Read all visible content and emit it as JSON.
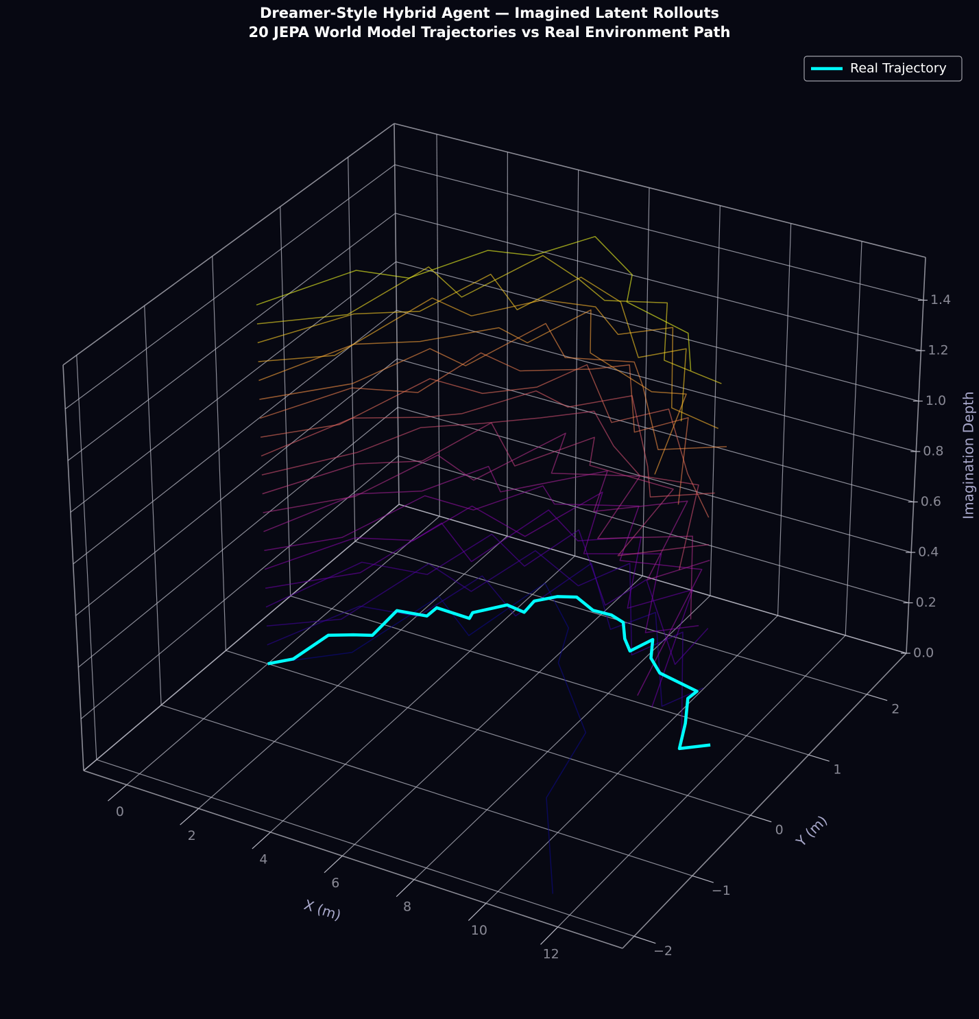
{
  "chart_data": {
    "type": "line3d",
    "title": "Dreamer-Style Hybrid Agent — Imagined Latent Rollouts",
    "subtitle": "20 JEPA World Model Trajectories vs Real Environment Path",
    "xlabel": "X (m)",
    "ylabel": "Y (m)",
    "zlabel": "Imagination Depth",
    "xlim": [
      -1.2,
      13.8
    ],
    "ylim": [
      -2.2,
      2.68
    ],
    "zlim": [
      0,
      1.57
    ],
    "xticks": [
      0,
      2,
      4,
      6,
      8,
      10,
      12
    ],
    "yticks": [
      {
        "value": -2,
        "label": "−2"
      },
      {
        "value": -1,
        "label": "−1"
      },
      0,
      1,
      2
    ],
    "zticks": [
      {
        "value": 0,
        "label": "0.0"
      },
      0.2,
      0.4,
      0.6,
      0.8,
      {
        "value": 1,
        "label": "1.0"
      },
      1.2,
      1.4
    ],
    "grid": true,
    "legend": "upper right",
    "series": [
      {
        "name": "Real Trajectory",
        "color": "#00ffff",
        "z": 0,
        "x": [
          0,
          0.42,
          0.58,
          1.1,
          1.52,
          1.44,
          2.22,
          2.23,
          3.2,
          3.13,
          3.7,
          4.25,
          4.2,
          4.6,
          5.04,
          5.72,
          6.24,
          6.68,
          7.1,
          7.5,
          7.74,
          8.13,
          8.67,
          9.91,
          9.87,
          10.37,
          10.8,
          11.4
        ],
        "y": [
          0,
          0.17,
          0.63,
          0.74,
          0.81,
          1.24,
          1.29,
          1.44,
          1.43,
          1.52,
          1.76,
          1.73,
          1.92,
          2.07,
          2.14,
          2.03,
          2.04,
          1.99,
          1.78,
          1.64,
          1.88,
          1.63,
          1.47,
          1.38,
          1.25,
          0.92,
          0.57,
          0.74
        ]
      }
    ],
    "rollouts": [
      {
        "color": "#0d0887",
        "z": 0,
        "x": [
          0,
          1.5,
          2.0,
          3.6,
          4.0,
          5.6,
          6.2,
          8.4,
          9.0,
          11.2
        ],
        "y": [
          0,
          0.5,
          1.6,
          1.2,
          2.2,
          1.7,
          1.2,
          0.4,
          -0.6,
          -1.8
        ]
      },
      {
        "color": "#2c0594",
        "z": 0.075,
        "x": [
          0,
          1.0,
          2.5,
          2.9,
          4.6,
          5.0,
          7.0,
          7.6,
          9.9,
          10.4
        ],
        "y": [
          0,
          0.9,
          1.0,
          1.8,
          1.4,
          2.4,
          1.6,
          2.0,
          0.8,
          1.2
        ]
      },
      {
        "color": "#43039e",
        "z": 0.15,
        "x": [
          0,
          1.4,
          1.9,
          3.5,
          3.9,
          5.7,
          6.3,
          8.5,
          9.1,
          11.5
        ],
        "y": [
          0,
          0.4,
          1.5,
          1.3,
          2.1,
          1.8,
          2.3,
          1.1,
          1.6,
          0.2
        ]
      },
      {
        "color": "#5901a5",
        "z": 0.225,
        "x": [
          0,
          0.9,
          2.6,
          3.0,
          4.5,
          4.8,
          7.2,
          7.5,
          10.1,
          10.0
        ],
        "y": [
          0,
          1.0,
          1.1,
          1.9,
          1.6,
          2.3,
          1.4,
          1.9,
          0.9,
          1.5
        ]
      },
      {
        "color": "#6e00a8",
        "z": 0.3,
        "x": [
          0,
          1.6,
          2.1,
          3.7,
          4.1,
          5.5,
          6.8,
          8.2,
          9.2,
          11.0
        ],
        "y": [
          0,
          0.6,
          1.6,
          1.2,
          2.2,
          1.9,
          2.2,
          1.2,
          1.7,
          0.0
        ]
      },
      {
        "color": "#8305a7",
        "z": 0.375,
        "x": [
          0,
          1.1,
          2.4,
          2.8,
          4.7,
          5.3,
          6.4,
          8.1,
          9.6,
          10.6
        ],
        "y": [
          0,
          0.8,
          1.0,
          1.7,
          1.5,
          2.4,
          1.5,
          1.8,
          0.7,
          1.0
        ]
      },
      {
        "color": "#9511a1",
        "z": 0.45,
        "x": [
          0,
          1.3,
          2.0,
          3.4,
          4.3,
          5.0,
          6.9,
          7.8,
          9.8,
          11.3
        ],
        "y": [
          0,
          0.5,
          1.4,
          1.4,
          2.0,
          1.8,
          2.1,
          1.3,
          1.5,
          -0.4
        ]
      },
      {
        "color": "#a72197",
        "z": 0.525,
        "x": [
          0,
          1.0,
          2.3,
          3.1,
          4.0,
          5.8,
          6.5,
          8.3,
          9.3,
          10.2
        ],
        "y": [
          0,
          0.9,
          1.2,
          1.8,
          1.5,
          2.2,
          1.6,
          2.1,
          0.9,
          1.4
        ]
      },
      {
        "color": "#b6308b",
        "z": 0.6,
        "x": [
          0,
          1.5,
          2.2,
          3.6,
          4.4,
          5.1,
          7.1,
          7.7,
          9.7,
          11.6
        ],
        "y": [
          0,
          0.6,
          1.5,
          1.3,
          2.3,
          1.7,
          2.0,
          1.0,
          1.4,
          0.3
        ]
      },
      {
        "color": "#c5407e",
        "z": 0.675,
        "x": [
          0,
          1.2,
          2.5,
          3.0,
          4.6,
          5.6,
          6.2,
          8.6,
          9.0,
          10.7
        ],
        "y": [
          0,
          0.8,
          1.1,
          1.9,
          1.4,
          2.1,
          1.7,
          1.7,
          0.6,
          1.1
        ]
      },
      {
        "color": "#d14e72",
        "z": 0.75,
        "x": [
          0,
          1.4,
          2.1,
          3.3,
          4.4,
          5.4,
          6.7,
          8.0,
          9.5,
          11.1
        ],
        "y": [
          0,
          0.7,
          1.3,
          1.6,
          1.9,
          2.2,
          1.8,
          1.5,
          1.6,
          0.4
        ]
      },
      {
        "color": "#dd5e66",
        "z": 0.825,
        "x": [
          0,
          0.9,
          2.4,
          3.1,
          4.1,
          5.2,
          6.3,
          8.4,
          9.2,
          10.5
        ],
        "y": [
          0,
          0.9,
          1.2,
          1.4,
          2.0,
          1.9,
          2.3,
          1.4,
          1.0,
          1.3
        ]
      },
      {
        "color": "#e76e5b",
        "z": 0.9,
        "x": [
          0,
          1.3,
          2.0,
          3.5,
          4.5,
          5.0,
          7.0,
          7.9,
          9.9,
          11.4
        ],
        "y": [
          0,
          0.5,
          1.5,
          1.5,
          1.8,
          2.3,
          1.6,
          2.0,
          1.2,
          0.7
        ]
      },
      {
        "color": "#f07f4f",
        "z": 0.975,
        "x": [
          0,
          1.1,
          2.6,
          2.9,
          4.2,
          5.7,
          6.4,
          8.2,
          9.0,
          10.9
        ],
        "y": [
          0,
          0.8,
          1.0,
          1.8,
          1.7,
          2.0,
          2.2,
          1.3,
          1.7,
          0.5
        ]
      },
      {
        "color": "#f79044",
        "z": 1.05,
        "x": [
          0,
          1.5,
          2.2,
          3.4,
          4.0,
          5.3,
          6.9,
          7.7,
          9.6,
          11.0
        ],
        "y": [
          0,
          0.6,
          1.4,
          1.3,
          2.2,
          1.8,
          2.0,
          1.7,
          0.9,
          1.2
        ]
      },
      {
        "color": "#fca338",
        "z": 1.125,
        "x": [
          0,
          1.0,
          2.3,
          3.6,
          4.6,
          5.1,
          6.2,
          8.5,
          9.3,
          10.6
        ],
        "y": [
          0,
          0.9,
          1.2,
          1.7,
          1.6,
          2.3,
          1.7,
          1.4,
          1.5,
          0.3
        ]
      },
      {
        "color": "#feb72d",
        "z": 1.2,
        "x": [
          0,
          1.4,
          1.9,
          3.2,
          4.3,
          5.6,
          6.8,
          7.8,
          9.8,
          11.3
        ],
        "y": [
          0,
          0.4,
          1.6,
          1.5,
          2.0,
          2.1,
          1.8,
          2.1,
          1.0,
          0.9
        ]
      },
      {
        "color": "#fccd25",
        "z": 1.275,
        "x": [
          0,
          1.2,
          2.5,
          3.0,
          4.5,
          5.0,
          6.5,
          8.3,
          9.1,
          10.8
        ],
        "y": [
          0,
          0.8,
          1.1,
          1.9,
          1.5,
          2.2,
          2.0,
          1.3,
          1.6,
          0.6
        ]
      },
      {
        "color": "#f7e225",
        "z": 1.35,
        "x": [
          0,
          1.6,
          2.0,
          3.5,
          4.1,
          5.5,
          6.6,
          8.0,
          9.4,
          11.2
        ],
        "y": [
          0,
          0.5,
          1.5,
          1.2,
          2.1,
          1.9,
          1.7,
          1.9,
          1.1,
          1.0
        ]
      },
      {
        "color": "#f0f921",
        "z": 1.425,
        "x": [
          0,
          1.1,
          2.4,
          3.3,
          4.4,
          5.2,
          7.0,
          7.6,
          9.7,
          10.7
        ],
        "y": [
          0,
          0.9,
          1.0,
          1.7,
          1.8,
          2.3,
          1.9,
          1.5,
          1.3,
          0.8
        ]
      }
    ]
  }
}
